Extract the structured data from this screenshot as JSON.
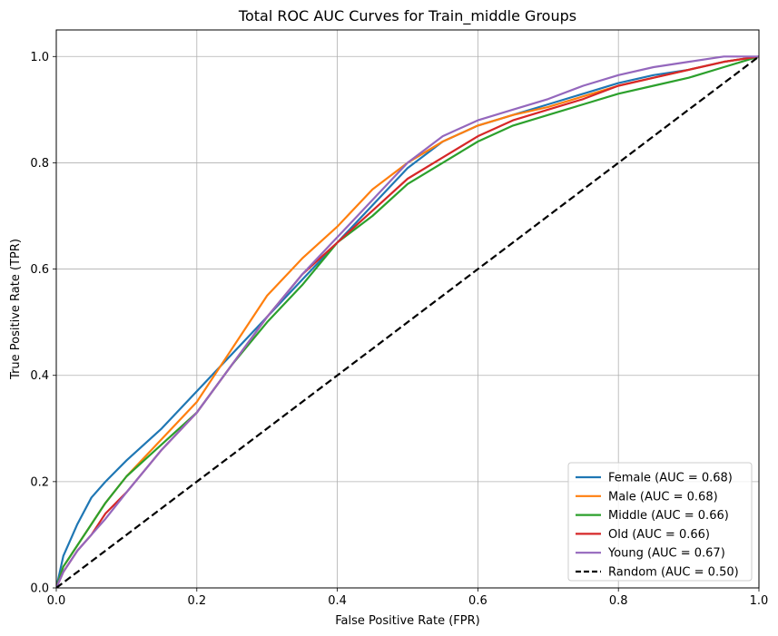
{
  "chart_data": {
    "type": "line",
    "title": "Total ROC AUC Curves for Train_middle Groups",
    "xlabel": "False Positive Rate (FPR)",
    "ylabel": "True Positive Rate (TPR)",
    "xlim": [
      0.0,
      1.0
    ],
    "ylim": [
      0.0,
      1.05
    ],
    "xticks": [
      "0.0",
      "0.2",
      "0.4",
      "0.6",
      "0.8",
      "1.0"
    ],
    "yticks": [
      "0.0",
      "0.2",
      "0.4",
      "0.6",
      "0.8",
      "1.0"
    ],
    "grid": true,
    "legend_position": "lower-right",
    "series": [
      {
        "name": "Female (AUC = 0.68)",
        "color": "#1f77b4",
        "dash": false,
        "x": [
          0,
          0.01,
          0.02,
          0.03,
          0.05,
          0.07,
          0.1,
          0.15,
          0.2,
          0.25,
          0.3,
          0.35,
          0.4,
          0.45,
          0.5,
          0.55,
          0.6,
          0.65,
          0.7,
          0.75,
          0.8,
          0.85,
          0.9,
          0.95,
          1.0
        ],
        "y": [
          0,
          0.06,
          0.09,
          0.12,
          0.17,
          0.2,
          0.24,
          0.3,
          0.37,
          0.44,
          0.51,
          0.58,
          0.65,
          0.72,
          0.79,
          0.84,
          0.87,
          0.89,
          0.91,
          0.93,
          0.95,
          0.965,
          0.975,
          0.99,
          1.0
        ]
      },
      {
        "name": "Male (AUC = 0.68)",
        "color": "#ff7f0e",
        "dash": false,
        "x": [
          0,
          0.01,
          0.02,
          0.03,
          0.05,
          0.07,
          0.1,
          0.15,
          0.2,
          0.25,
          0.3,
          0.35,
          0.4,
          0.45,
          0.5,
          0.55,
          0.6,
          0.65,
          0.7,
          0.75,
          0.8,
          0.85,
          0.9,
          0.95,
          1.0
        ],
        "y": [
          0,
          0.04,
          0.06,
          0.08,
          0.12,
          0.16,
          0.21,
          0.28,
          0.35,
          0.45,
          0.55,
          0.62,
          0.68,
          0.75,
          0.8,
          0.84,
          0.87,
          0.89,
          0.905,
          0.925,
          0.945,
          0.96,
          0.975,
          0.99,
          1.0
        ]
      },
      {
        "name": "Middle (AUC = 0.66)",
        "color": "#2ca02c",
        "dash": false,
        "x": [
          0,
          0.01,
          0.02,
          0.03,
          0.05,
          0.07,
          0.1,
          0.15,
          0.2,
          0.25,
          0.3,
          0.35,
          0.4,
          0.45,
          0.5,
          0.55,
          0.6,
          0.65,
          0.7,
          0.75,
          0.8,
          0.85,
          0.9,
          0.95,
          1.0
        ],
        "y": [
          0,
          0.04,
          0.06,
          0.08,
          0.12,
          0.16,
          0.21,
          0.27,
          0.33,
          0.42,
          0.5,
          0.57,
          0.65,
          0.7,
          0.76,
          0.8,
          0.84,
          0.87,
          0.89,
          0.91,
          0.93,
          0.945,
          0.96,
          0.98,
          1.0
        ]
      },
      {
        "name": "Old (AUC = 0.66)",
        "color": "#d62728",
        "dash": false,
        "x": [
          0,
          0.01,
          0.02,
          0.03,
          0.05,
          0.07,
          0.1,
          0.15,
          0.2,
          0.25,
          0.3,
          0.35,
          0.4,
          0.45,
          0.5,
          0.55,
          0.6,
          0.65,
          0.7,
          0.75,
          0.8,
          0.85,
          0.9,
          0.95,
          1.0
        ],
        "y": [
          0,
          0.03,
          0.05,
          0.07,
          0.1,
          0.14,
          0.18,
          0.26,
          0.33,
          0.42,
          0.51,
          0.59,
          0.65,
          0.71,
          0.77,
          0.81,
          0.85,
          0.88,
          0.9,
          0.92,
          0.945,
          0.96,
          0.975,
          0.99,
          1.0
        ]
      },
      {
        "name": "Young (AUC = 0.67)",
        "color": "#9467bd",
        "dash": false,
        "x": [
          0,
          0.01,
          0.02,
          0.03,
          0.05,
          0.07,
          0.1,
          0.15,
          0.2,
          0.25,
          0.3,
          0.35,
          0.4,
          0.45,
          0.5,
          0.55,
          0.6,
          0.65,
          0.7,
          0.75,
          0.8,
          0.85,
          0.9,
          0.95,
          1.0
        ],
        "y": [
          0,
          0.03,
          0.05,
          0.07,
          0.1,
          0.13,
          0.18,
          0.26,
          0.33,
          0.42,
          0.51,
          0.59,
          0.66,
          0.73,
          0.8,
          0.85,
          0.88,
          0.9,
          0.92,
          0.945,
          0.965,
          0.98,
          0.99,
          1.0,
          1.0
        ]
      },
      {
        "name": "Random (AUC = 0.50)",
        "color": "#000000",
        "dash": true,
        "x": [
          0,
          1.0
        ],
        "y": [
          0,
          1.0
        ]
      }
    ]
  }
}
